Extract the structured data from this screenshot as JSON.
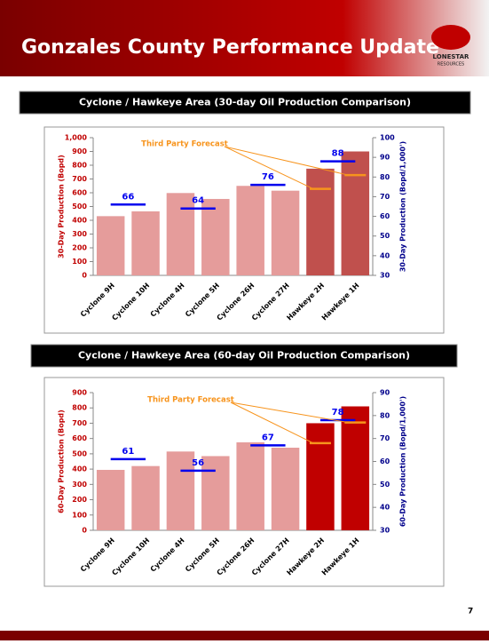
{
  "header": {
    "title": "Gonzales County Performance Update",
    "logo": "LONESTAR",
    "logo_sub": "RESOURCES"
  },
  "page_number": 7,
  "chart_data": [
    {
      "type": "bar",
      "title": "Cyclone / Hawkeye Area (30-day Oil Production Comparison)",
      "categories": [
        "Cyclone 9H",
        "Cyclone 10H",
        "Cyclone 4H",
        "Cyclone 5H",
        "Cyclone 26H",
        "Cyclone 27H",
        "Hawkeye 2H",
        "Hawkeye 1H"
      ],
      "values": [
        430,
        465,
        598,
        555,
        650,
        615,
        775,
        900
      ],
      "colors": [
        "#e59c9b",
        "#e59c9b",
        "#e59c9b",
        "#e59c9b",
        "#e59c9b",
        "#e59c9b",
        "#c0504d",
        "#c0504d"
      ],
      "ylabel": "30-Day Production (Bopd)",
      "y2label": "30-Day Production (Bopd/1,000')",
      "ylim": [
        0,
        1000
      ],
      "yticks": [
        0,
        100,
        200,
        300,
        400,
        500,
        600,
        700,
        800,
        900,
        {
          "value": 1000,
          "label": "1,000"
        }
      ],
      "y2lim": [
        30,
        100
      ],
      "y2ticks": [
        30,
        40,
        50,
        60,
        70,
        80,
        90,
        100
      ],
      "markers": {
        "axis": "y2",
        "color": "#0000ee",
        "values": [
          66,
          null,
          64,
          null,
          76,
          null,
          88,
          null
        ]
      },
      "forecast": {
        "axis": "y2",
        "color": "#f7941d",
        "label": "Third Party Forecast",
        "values": [
          null,
          null,
          null,
          null,
          null,
          null,
          74,
          81
        ]
      },
      "grid": false
    },
    {
      "type": "bar",
      "title": "Cyclone / Hawkeye Area (60-day Oil Production Comparison)",
      "categories": [
        "Cyclone 9H",
        "Cyclone 10H",
        "Cyclone 4H",
        "Cyclone 5H",
        "Cyclone 26H",
        "Cyclone 27H",
        "Hawkeye 2H",
        "Hawkeye 1H"
      ],
      "values": [
        395,
        420,
        515,
        485,
        575,
        540,
        700,
        810
      ],
      "colors": [
        "#e59c9b",
        "#e59c9b",
        "#e59c9b",
        "#e59c9b",
        "#e59c9b",
        "#e59c9b",
        "#c00000",
        "#c00000"
      ],
      "ylabel": "60-Day Production (Bopd)",
      "y2label": "60-Day Production (Bopd/1,000')",
      "ylim": [
        0,
        900
      ],
      "yticks": [
        0,
        100,
        200,
        300,
        400,
        500,
        600,
        700,
        800,
        900
      ],
      "y2lim": [
        30,
        90
      ],
      "y2ticks": [
        30,
        40,
        50,
        60,
        70,
        80,
        90
      ],
      "markers": {
        "axis": "y2",
        "color": "#0000ee",
        "values": [
          61,
          null,
          56,
          null,
          67,
          null,
          78,
          null
        ]
      },
      "forecast": {
        "axis": "y2",
        "color": "#f7941d",
        "label": "Third Party Forecast",
        "values": [
          null,
          null,
          null,
          null,
          null,
          null,
          68,
          77
        ]
      },
      "grid": false
    }
  ]
}
